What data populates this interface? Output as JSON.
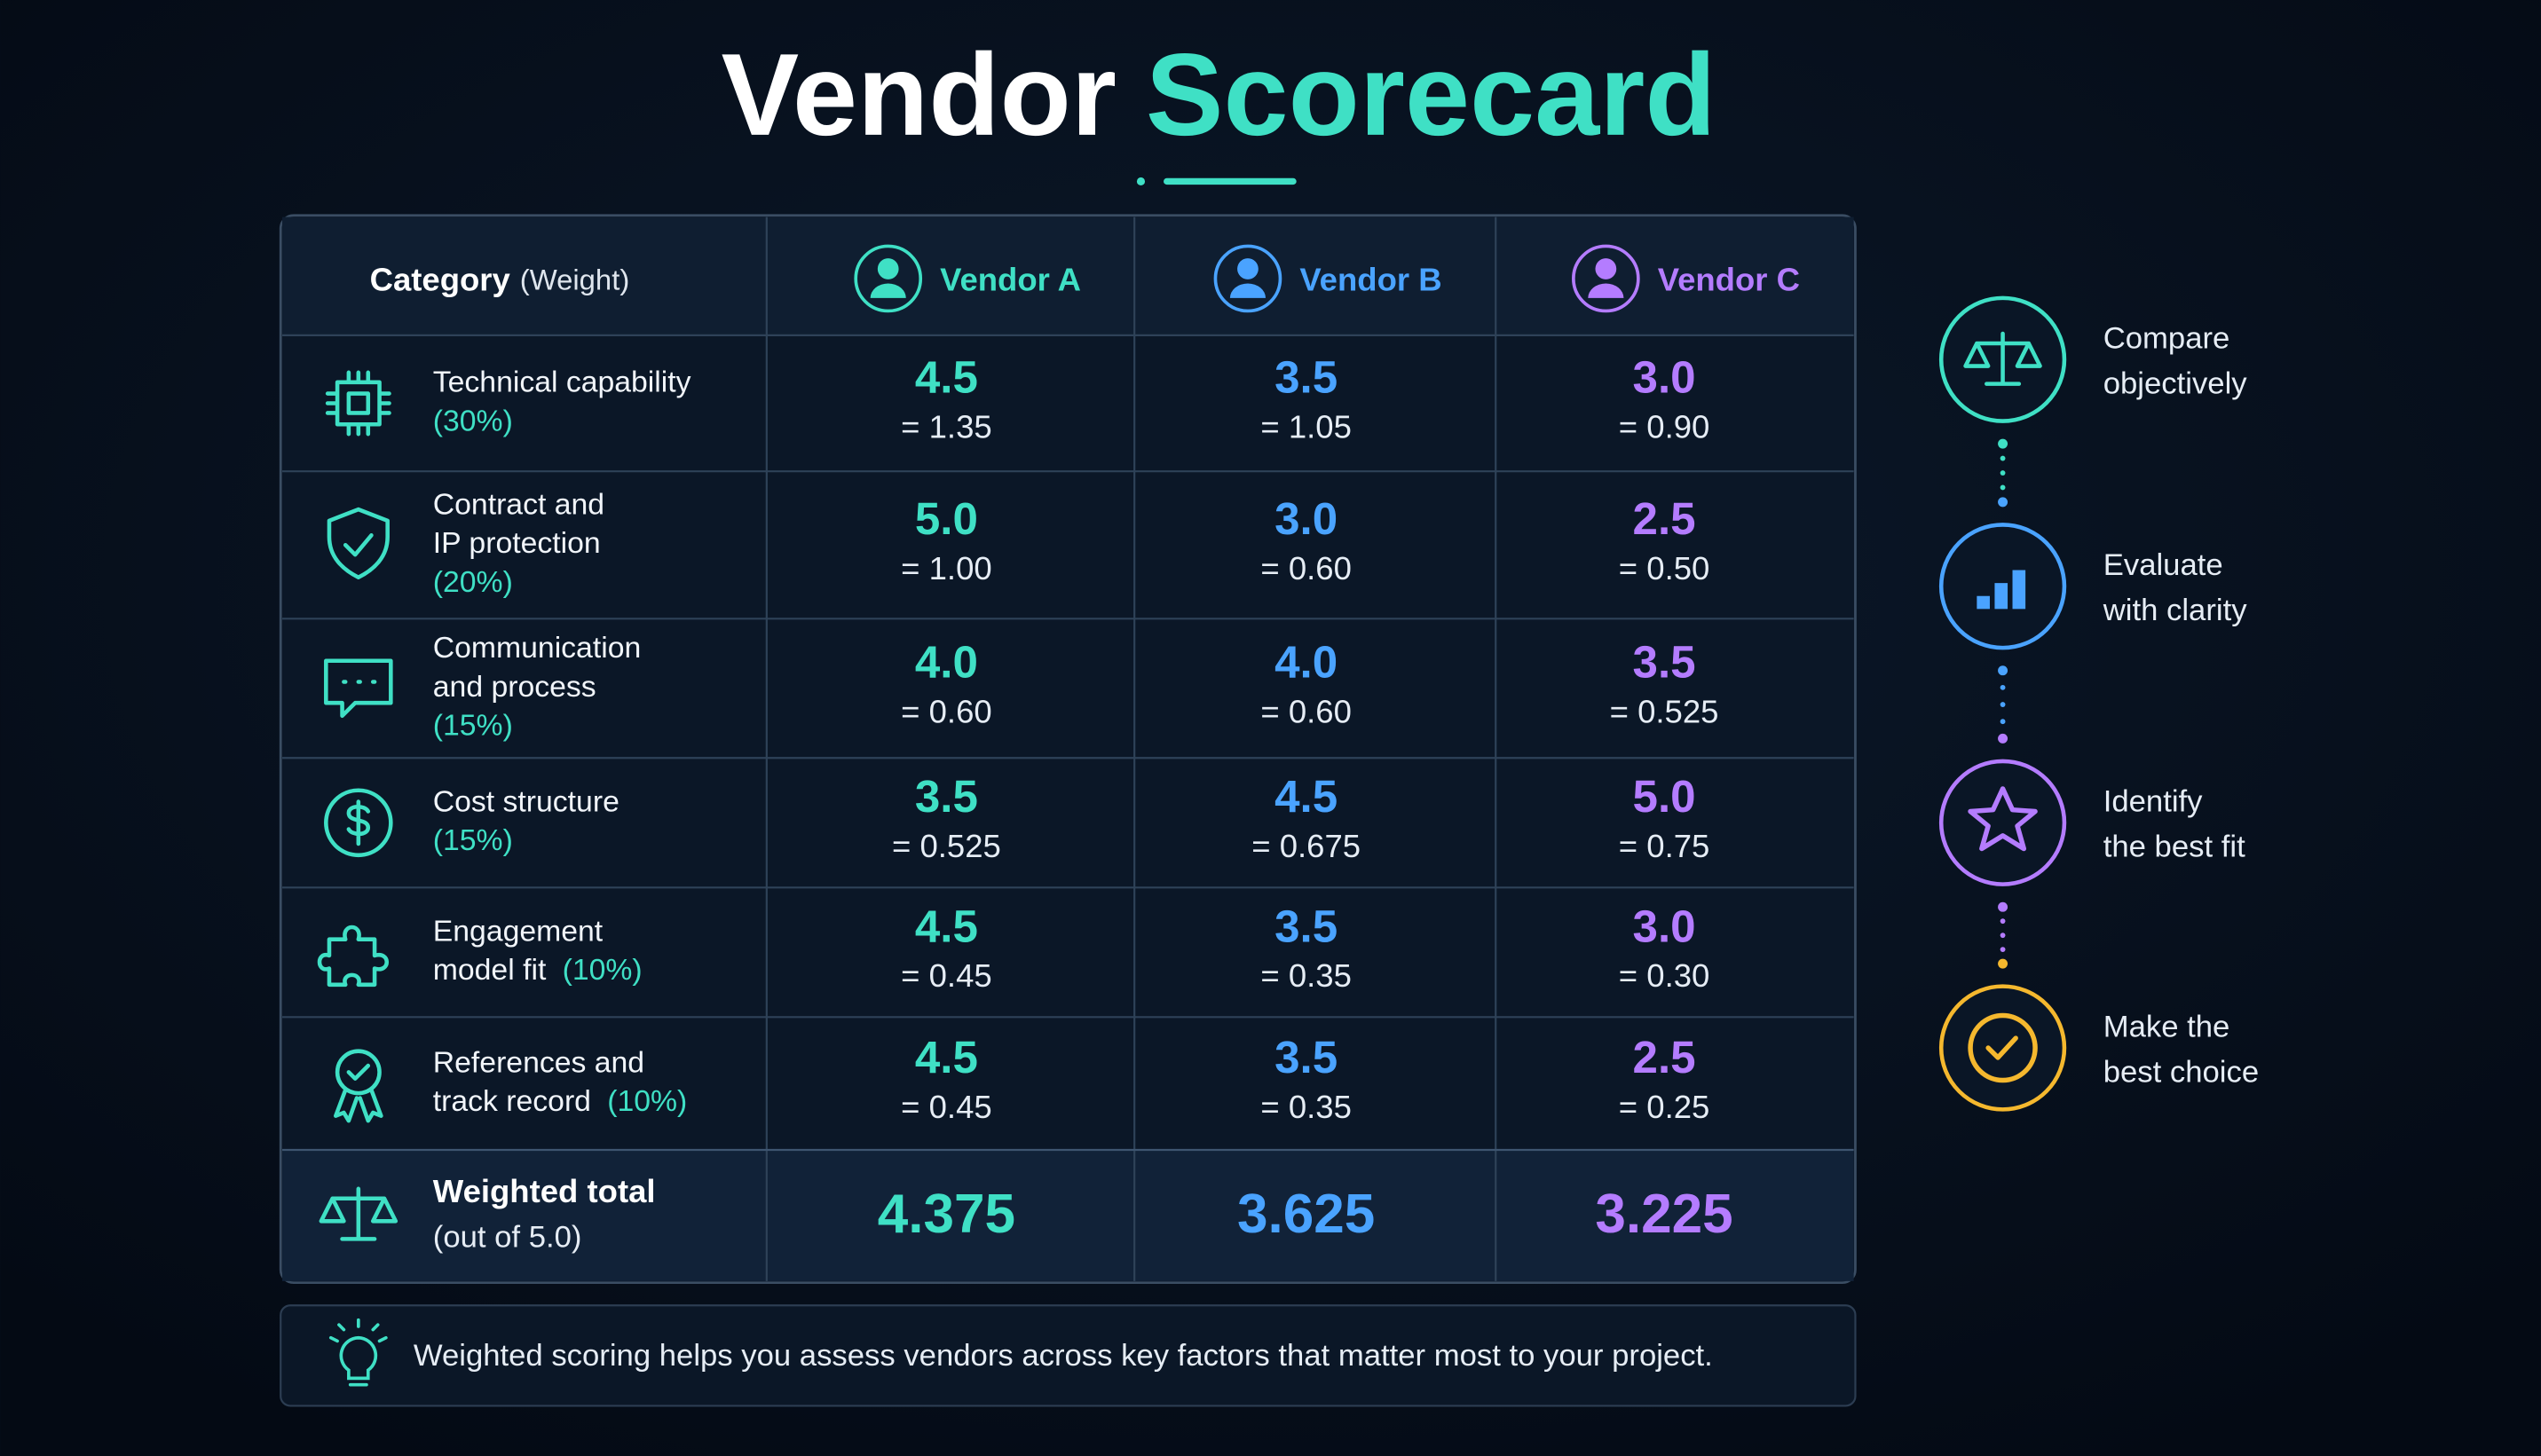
{
  "title": {
    "part1": "Vendor",
    "part2": "Scorecard"
  },
  "table": {
    "header": {
      "category": "Category",
      "weight": "(Weight)",
      "vendors": [
        "Vendor A",
        "Vendor B",
        "Vendor C"
      ]
    },
    "rows": [
      {
        "label": [
          "Technical capability"
        ],
        "weight": "(30%)",
        "scores": [
          [
            "4.5",
            "= 1.35"
          ],
          [
            "3.5",
            "= 1.05"
          ],
          [
            "3.0",
            "= 0.90"
          ]
        ]
      },
      {
        "label": [
          "Contract and",
          "IP protection"
        ],
        "weight": "(20%)",
        "scores": [
          [
            "5.0",
            "= 1.00"
          ],
          [
            "3.0",
            "= 0.60"
          ],
          [
            "2.5",
            "= 0.50"
          ]
        ]
      },
      {
        "label": [
          "Communication",
          "and process"
        ],
        "weight": "(15%)",
        "scores": [
          [
            "4.0",
            "= 0.60"
          ],
          [
            "4.0",
            "= 0.60"
          ],
          [
            "3.5",
            "= 0.525"
          ]
        ]
      },
      {
        "label": [
          "Cost structure"
        ],
        "weight": "(15%)",
        "scores": [
          [
            "3.5",
            "= 0.525"
          ],
          [
            "4.5",
            "= 0.675"
          ],
          [
            "5.0",
            "= 0.75"
          ]
        ]
      },
      {
        "label": [
          "Engagement",
          "model fit"
        ],
        "weight": "(10%)",
        "scores": [
          [
            "4.5",
            "= 0.45"
          ],
          [
            "3.5",
            "= 0.35"
          ],
          [
            "3.0",
            "= 0.30"
          ]
        ]
      },
      {
        "label": [
          "References and",
          "track record"
        ],
        "weight": "(10%)",
        "scores": [
          [
            "4.5",
            "= 0.45"
          ],
          [
            "3.5",
            "= 0.35"
          ],
          [
            "2.5",
            "= 0.25"
          ]
        ]
      }
    ],
    "total": {
      "label": "Weighted total",
      "sub": "(out of 5.0)",
      "values": [
        "4.375",
        "3.625",
        "3.225"
      ]
    }
  },
  "steps": [
    {
      "lines": [
        "Compare",
        "objectively"
      ]
    },
    {
      "lines": [
        "Evaluate",
        "with clarity"
      ]
    },
    {
      "lines": [
        "Identify",
        "the best fit"
      ]
    },
    {
      "lines": [
        "Make the",
        "best choice"
      ]
    }
  ],
  "note": "Weighted scoring helps you assess vendors across key factors that matter most to your project."
}
